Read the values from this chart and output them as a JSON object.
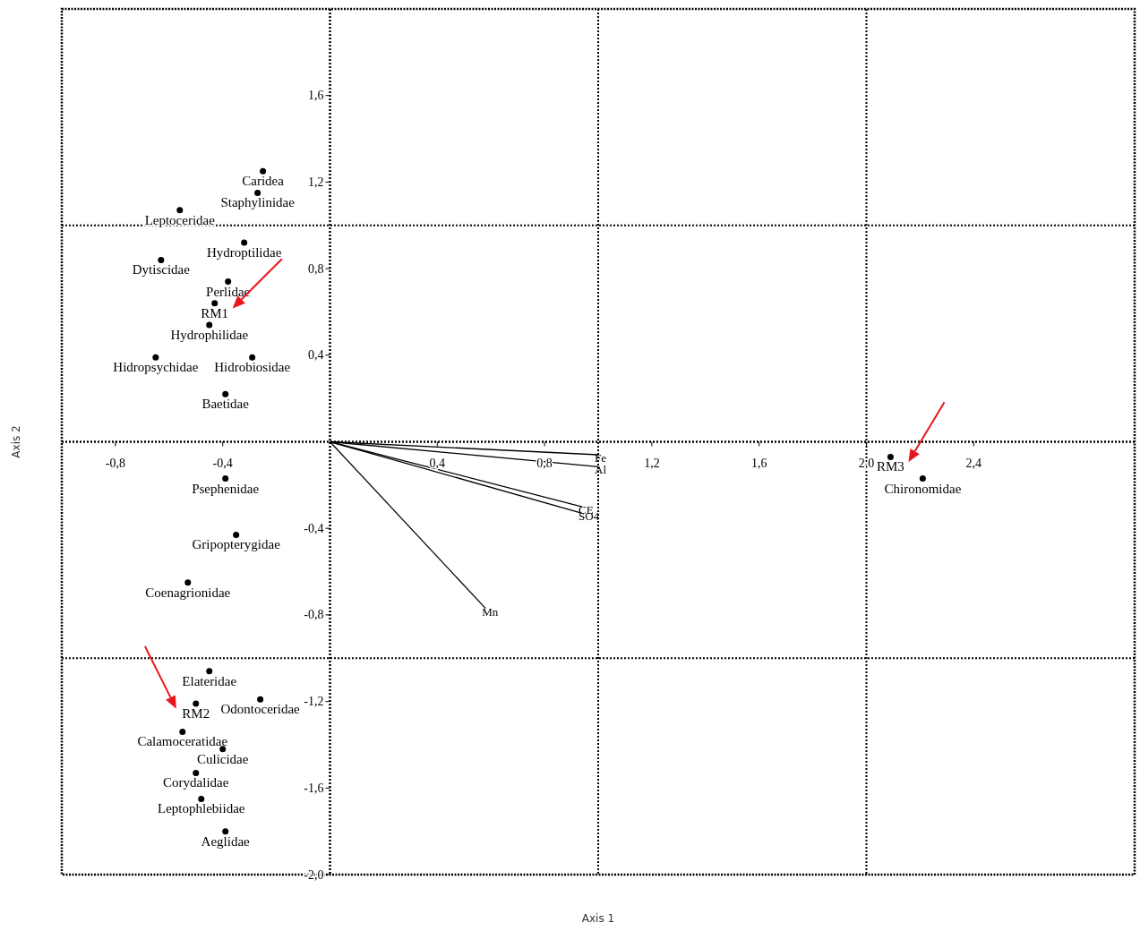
{
  "chart_data": {
    "type": "scatter",
    "xlabel": "Axis 1",
    "ylabel": "Axis 2",
    "xlim": [
      -1,
      3
    ],
    "ylim": [
      -2,
      2
    ],
    "xticks": [
      {
        "value": -0.8,
        "label": "-0,8"
      },
      {
        "value": -0.4,
        "label": "-0,4"
      },
      {
        "value": 0.4,
        "label": "0,4"
      },
      {
        "value": 0.8,
        "label": "0,8"
      },
      {
        "value": 1.2,
        "label": "1,2"
      },
      {
        "value": 1.6,
        "label": "1,6"
      },
      {
        "value": 2.0,
        "label": "2,0"
      },
      {
        "value": 2.4,
        "label": "2,4"
      }
    ],
    "yticks": [
      {
        "value": 1.6,
        "label": "1,6"
      },
      {
        "value": 1.2,
        "label": "1,2"
      },
      {
        "value": 0.8,
        "label": "0,8"
      },
      {
        "value": 0.4,
        "label": "0,4"
      },
      {
        "value": -0.4,
        "label": "-0,4"
      },
      {
        "value": -0.8,
        "label": "-0,8"
      },
      {
        "value": -1.2,
        "label": "-1,2"
      },
      {
        "value": -1.6,
        "label": "-1,6"
      },
      {
        "value": -2.0,
        "label": "-2,0"
      }
    ],
    "grid": false,
    "ref_lines": [
      {
        "axis": "x",
        "value": 0,
        "line_style": "dotted"
      },
      {
        "axis": "y",
        "value": 0,
        "line_style": "dotted"
      },
      {
        "axis": "x",
        "value": 1,
        "line_style": "dotted"
      },
      {
        "axis": "x",
        "value": 2,
        "line_style": "dotted"
      },
      {
        "axis": "y",
        "value": 1,
        "line_style": "dotted"
      },
      {
        "axis": "y",
        "value": -1,
        "line_style": "dotted"
      }
    ],
    "series": [
      {
        "marker": "circle",
        "color": "#000000",
        "x": [
          -0.25,
          -0.27,
          -0.56,
          -0.32,
          -0.63,
          -0.38,
          -0.45,
          -0.65,
          -0.29,
          -0.39,
          -0.39,
          -0.35,
          -0.53,
          -0.45,
          -0.26,
          -0.55,
          -0.4,
          -0.5,
          -0.48,
          -0.39,
          2.21
        ],
        "values": [
          1.25,
          1.15,
          1.07,
          0.92,
          0.84,
          0.74,
          0.54,
          0.39,
          0.39,
          0.22,
          -0.17,
          -0.43,
          -0.65,
          -1.06,
          -1.19,
          -1.34,
          -1.42,
          -1.53,
          -1.65,
          -1.8,
          -0.17
        ],
        "value_labels": [
          "Caridea",
          "Staphylinidae",
          "Leptoceridae",
          "Hydroptilidae",
          "Dytiscidae",
          "Perlidae",
          "Hydrophilidae",
          "Hidropsychidae",
          "Hidrobiosidae",
          "Baetidae",
          "Psephenidae",
          "Gripopterygidae",
          "Coenagrionidae",
          "Elateridae",
          "Odontoceridae",
          "Calamoceratidae",
          "Culicidae",
          "Corydalidae",
          "Leptophlebiidae",
          "Aeglidae",
          "Chironomidae"
        ]
      },
      {
        "marker": "circle",
        "color": "#000000",
        "x": [
          -0.43,
          -0.5,
          2.09
        ],
        "values": [
          0.64,
          -1.21,
          -0.07
        ],
        "value_labels": [
          "RM1",
          "RM2",
          "RM3"
        ]
      },
      {
        "type": "line",
        "name": "Fe",
        "color": "#000000",
        "x": [
          0,
          1.0
        ],
        "values": [
          0,
          -0.06
        ]
      },
      {
        "type": "line",
        "name": "Al",
        "color": "#000000",
        "x": [
          0,
          1.0
        ],
        "values": [
          0,
          -0.115
        ]
      },
      {
        "type": "line",
        "name": "CE",
        "color": "#000000",
        "x": [
          0,
          0.94
        ],
        "values": [
          0,
          -0.3
        ]
      },
      {
        "type": "line",
        "name": "SO4",
        "color": "#000000",
        "x": [
          0,
          0.94
        ],
        "values": [
          0,
          -0.33
        ]
      },
      {
        "type": "line",
        "name": "Mn",
        "color": "#000000",
        "x": [
          0,
          0.58
        ],
        "values": [
          0,
          -0.77
        ]
      }
    ]
  }
}
